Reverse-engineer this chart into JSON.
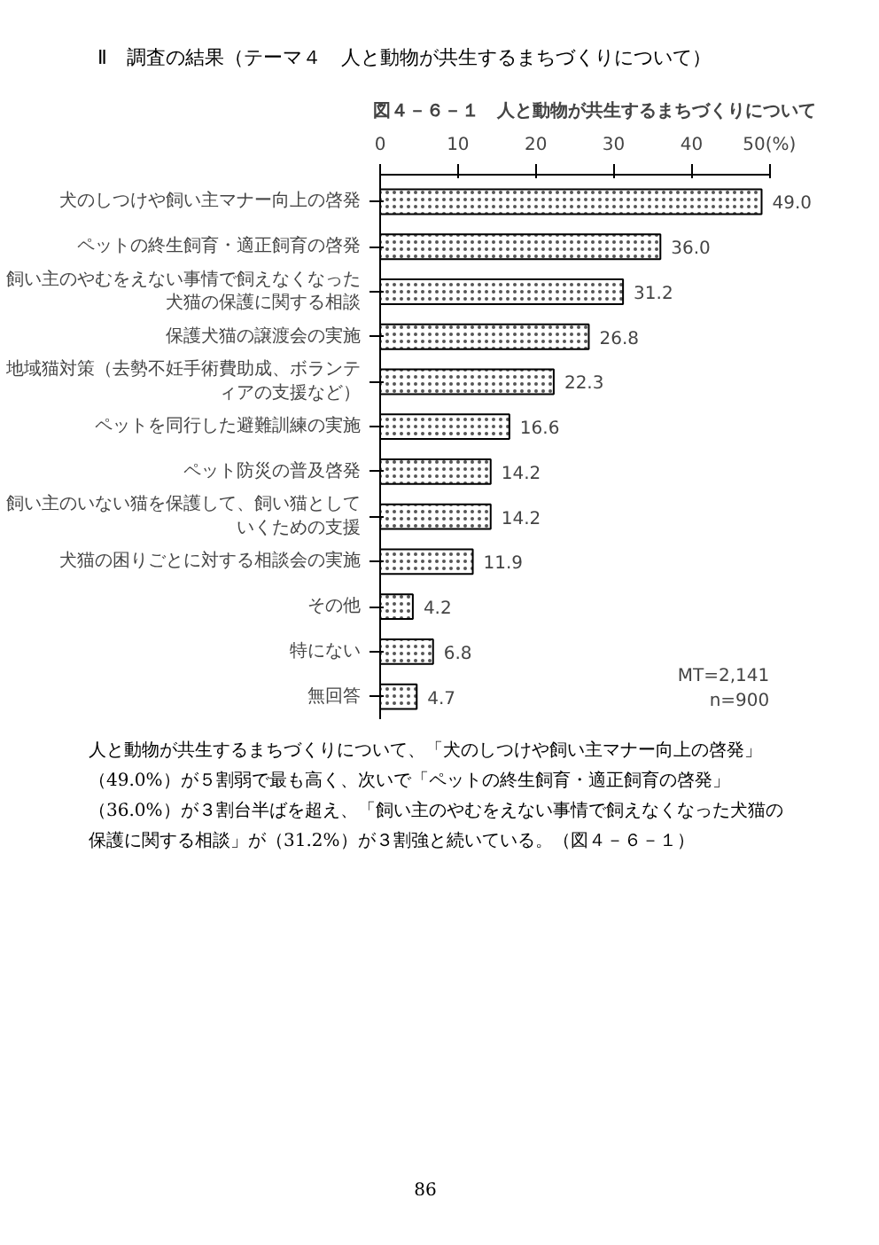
{
  "chart_data": {
    "type": "bar",
    "orientation": "horizontal",
    "title": "図４－６－１　人と動物が共生するまちづくりについて",
    "categories": [
      "犬のしつけや飼い主マナー向上の啓発",
      "ペットの終生飼育・適正飼育の啓発",
      "飼い主のやむをえない事情で飼えなくなった犬猫の保護に関する相談",
      "保護犬猫の譲渡会の実施",
      "地域猫対策（去勢不妊手術費助成、ボランティアの支援など）",
      "ペットを同行した避難訓練の実施",
      "ペット防災の普及啓発",
      "飼い主のいない猫を保護して、飼い猫としていくための支援",
      "犬猫の困りごとに対する相談会の実施",
      "その他",
      "特にない",
      "無回答"
    ],
    "values": [
      49.0,
      36.0,
      31.2,
      26.8,
      22.3,
      16.6,
      14.2,
      14.2,
      11.9,
      4.2,
      6.8,
      4.7
    ],
    "color": "#ffffff",
    "value_labels": [
      "49.0",
      "36.0",
      "31.2",
      "26.8",
      "22.3",
      "16.6",
      "14.2",
      "14.2",
      "11.9",
      "4.2",
      "6.8",
      "4.7"
    ],
    "xlim": [
      0,
      50
    ],
    "xticks": [
      0,
      10,
      20,
      30,
      40,
      {
        "value": 50,
        "label": "50(%)"
      }
    ],
    "grid": false,
    "annotations": [
      "Ⅱ　調査の結果（テーマ４　人と動物が共生するまちづくりについて）",
      "MT=2,141",
      "n=900",
      "人と動物が共生するまちづくりについて、「犬のしつけや飼い主マナー向上の啓発」（49.0%）が５割弱で最も高く、次いで「ペットの終生飼育・適正飼育の啓発」（36.0%）が３割台半ばを超え、「飼い主のやむをえない事情で飼えなくなった犬猫の保護に関する相談」が（31.2%）が３割強と続いている。（図４－６－１）",
      "86"
    ]
  }
}
